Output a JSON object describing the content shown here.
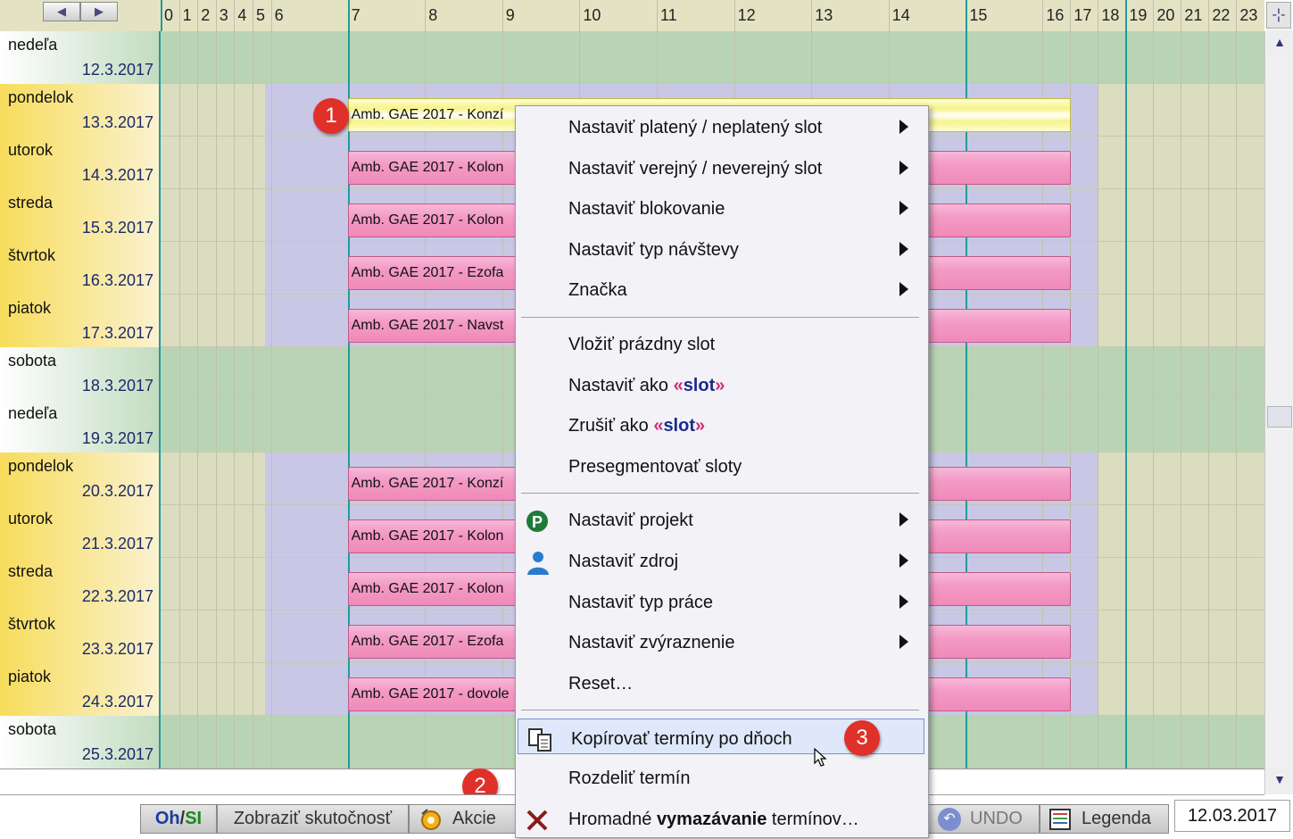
{
  "header": {
    "hours": [
      "0",
      "1",
      "2",
      "3",
      "4",
      "5",
      "6",
      "7",
      "8",
      "9",
      "10",
      "11",
      "12",
      "13",
      "14",
      "15",
      "16",
      "17",
      "18",
      "19",
      "20",
      "21",
      "22",
      "23"
    ]
  },
  "days": [
    {
      "name": "nedeľa",
      "date": "12.3.2017",
      "kind": "weekend"
    },
    {
      "name": "pondelok",
      "date": "13.3.2017",
      "kind": "weekday",
      "slot": "Amb. GAE 2017 - Konzí",
      "slot_style": "yellow"
    },
    {
      "name": "utorok",
      "date": "14.3.2017",
      "kind": "weekday",
      "slot": "Amb. GAE 2017 - Kolon",
      "slot_style": "pink"
    },
    {
      "name": "streda",
      "date": "15.3.2017",
      "kind": "weekday",
      "slot": "Amb. GAE 2017 - Kolon",
      "slot_style": "pink"
    },
    {
      "name": "štvrtok",
      "date": "16.3.2017",
      "kind": "weekday",
      "slot": "Amb. GAE 2017 - Ezofa",
      "slot_style": "pink"
    },
    {
      "name": "piatok",
      "date": "17.3.2017",
      "kind": "weekday",
      "slot": "Amb. GAE 2017 - Navst",
      "slot_style": "pink"
    },
    {
      "name": "sobota",
      "date": "18.3.2017",
      "kind": "weekend"
    },
    {
      "name": "nedeľa",
      "date": "19.3.2017",
      "kind": "weekend"
    },
    {
      "name": "pondelok",
      "date": "20.3.2017",
      "kind": "weekday",
      "slot": "Amb. GAE 2017 - Konzí",
      "slot_style": "pink"
    },
    {
      "name": "utorok",
      "date": "21.3.2017",
      "kind": "weekday",
      "slot": "Amb. GAE 2017 - Kolon",
      "slot_style": "pink"
    },
    {
      "name": "streda",
      "date": "22.3.2017",
      "kind": "weekday",
      "slot": "Amb. GAE 2017 - Kolon",
      "slot_style": "pink"
    },
    {
      "name": "štvrtok",
      "date": "23.3.2017",
      "kind": "weekday",
      "slot": "Amb. GAE 2017 - Ezofa",
      "slot_style": "pink"
    },
    {
      "name": "piatok",
      "date": "24.3.2017",
      "kind": "weekday",
      "slot": "Amb. GAE 2017 - dovole",
      "slot_style": "pink"
    },
    {
      "name": "sobota",
      "date": "25.3.2017",
      "kind": "weekend"
    }
  ],
  "callouts": {
    "one": "1",
    "two": "2",
    "three": "3"
  },
  "menu": {
    "items": [
      {
        "label": "Nastaviť platený / neplatený slot",
        "submenu": true
      },
      {
        "label": "Nastaviť verejný / neverejný slot",
        "submenu": true
      },
      {
        "label": "Nastaviť blokovanie",
        "submenu": true
      },
      {
        "label": "Nastaviť typ návštevy",
        "submenu": true
      },
      {
        "label": "Značka",
        "submenu": true
      },
      {
        "sep": true
      },
      {
        "label": "Vložiť prázdny slot"
      },
      {
        "label_parts": [
          "Nastaviť ako ",
          "«",
          "slot",
          "»"
        ]
      },
      {
        "label_parts": [
          "Zrušiť ako ",
          "«",
          "slot",
          "»"
        ]
      },
      {
        "label": "Presegmentovať sloty"
      },
      {
        "sep": true
      },
      {
        "label": "Nastaviť projekt",
        "submenu": true,
        "icon": "project-p-icon"
      },
      {
        "label": "Nastaviť zdroj",
        "submenu": true,
        "icon": "person-icon"
      },
      {
        "label": "Nastaviť typ práce",
        "submenu": true
      },
      {
        "label": "Nastaviť zvýraznenie",
        "submenu": true
      },
      {
        "label": "Reset…"
      },
      {
        "sep": true
      },
      {
        "label": "Kopírovať termíny po dňoch",
        "icon": "copy-icon",
        "highlighted": true
      },
      {
        "label": "Rozdeliť termín"
      },
      {
        "label_parts": [
          "Hromadné ",
          "vymazávanie",
          " termínov…"
        ],
        "icon": "delete-x-icon"
      }
    ]
  },
  "bottombar": {
    "oh": "Oh",
    "slash": "/",
    "si": "SI",
    "show_actual": "Zobraziť skutočnosť",
    "actions": "Akcie",
    "undo": "UNDO",
    "legend": "Legenda",
    "date": "12.03.2017"
  },
  "colors": {
    "weekend_bg": "#b9d4b4",
    "weekday_bg": "#dcdcc0",
    "weekday_label": "#f7dd5c",
    "working_hours": "#c8c8e6",
    "slot_pink": "#f39ac6",
    "slot_yellow": "#f8f69a",
    "accent_line": "#1f9c9c",
    "badge": "#e0302a"
  }
}
